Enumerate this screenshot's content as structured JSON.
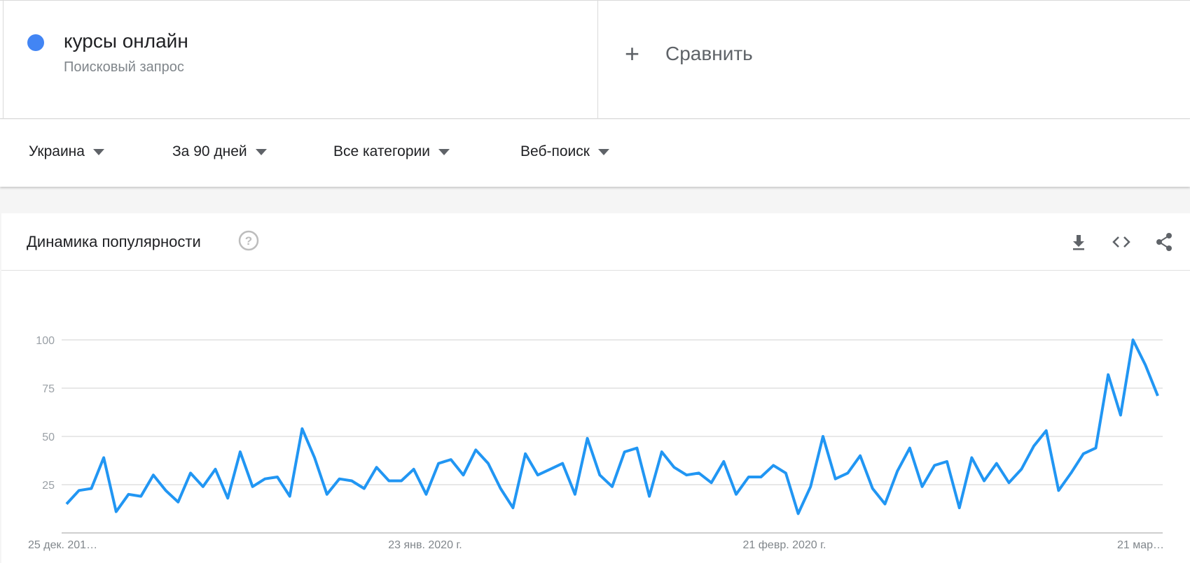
{
  "term": {
    "title": "курсы онлайн",
    "subtitle": "Поисковый запрос",
    "color": "#4285f4"
  },
  "compare": {
    "label": "Сравнить"
  },
  "filters": {
    "region": "Украина",
    "period": "За 90 дней",
    "category": "Все категории",
    "search_type": "Веб-поиск"
  },
  "chart_section": {
    "title": "Динамика популярности",
    "icons": [
      "help-icon",
      "download-icon",
      "embed-icon",
      "share-icon"
    ]
  },
  "chart_data": {
    "type": "line",
    "title": "",
    "xlabel": "",
    "ylabel": "",
    "ylim": [
      0,
      100
    ],
    "yticks": [
      25,
      50,
      75,
      100
    ],
    "grid": true,
    "line_color": "#2196f3",
    "x_tick_labels": [
      "25 дек. 201…",
      "23 янв. 2020 г.",
      "21 февр. 2020 г.",
      "21 мар…"
    ],
    "series": [
      {
        "values": [
          15,
          22,
          23,
          39,
          11,
          20,
          19,
          30,
          22,
          16,
          31,
          24,
          33,
          18,
          42,
          24,
          28,
          29,
          19,
          54,
          39,
          20,
          28,
          27,
          23,
          34,
          27,
          27,
          33,
          20,
          36,
          38,
          30,
          43,
          36,
          23,
          13,
          41,
          30,
          33,
          36,
          20,
          49,
          30,
          24,
          42,
          44,
          19,
          42,
          34,
          30,
          31,
          26,
          37,
          20,
          29,
          29,
          35,
          31,
          10,
          24,
          50,
          28,
          31,
          40,
          23,
          15,
          32,
          44,
          24,
          35,
          37,
          13,
          39,
          27,
          36,
          26,
          33,
          45,
          53,
          22,
          31,
          41,
          44,
          82,
          61,
          100,
          87,
          71
        ]
      }
    ]
  }
}
